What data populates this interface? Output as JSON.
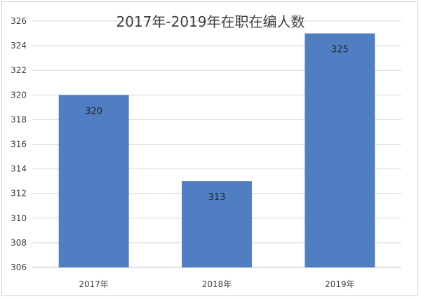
{
  "chart_data": {
    "type": "bar",
    "title": "2017年-2019年在职在编人数",
    "categories": [
      "2017年",
      "2018年",
      "2019年"
    ],
    "values": [
      320,
      313,
      325
    ],
    "data_labels": [
      "320",
      "313",
      "325"
    ],
    "ylim": [
      306,
      326
    ],
    "yticks": [
      306,
      308,
      310,
      312,
      314,
      316,
      318,
      320,
      322,
      324,
      326
    ],
    "grid": true,
    "legend": "none",
    "bar_color": "#4f7fc2"
  }
}
